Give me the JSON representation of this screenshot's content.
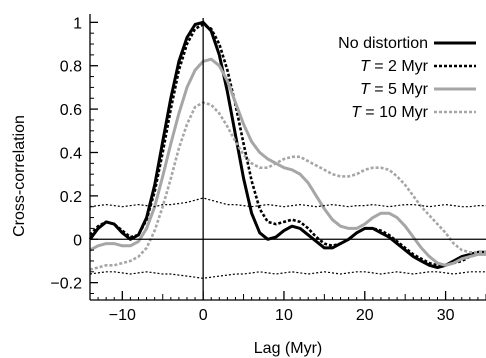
{
  "chart_data": {
    "type": "line",
    "xlabel": "Lag (Myr)",
    "ylabel": "Cross-correlation",
    "xlim": [
      -14,
      35
    ],
    "ylim": [
      -0.28,
      1.02
    ],
    "xticks": [
      -10,
      0,
      10,
      20,
      30
    ],
    "xtick_labels": [
      "−10",
      "0",
      "10",
      "20",
      "30"
    ],
    "yticks": [
      -0.2,
      0,
      0.2,
      0.4,
      0.6,
      0.8,
      1
    ],
    "ytick_labels": [
      "−0.2",
      "0",
      "0.2",
      "0.4",
      "0.6",
      "0.8",
      "1"
    ],
    "grid": false,
    "legend_position": "top-right",
    "series": [
      {
        "name": "No distortion",
        "legend_prefix": "",
        "legend_suffix": "No distortion",
        "color": "#000000",
        "style": "solid",
        "x": [
          -14,
          -13,
          -12,
          -11,
          -10,
          -9,
          -8,
          -7,
          -6,
          -5,
          -4,
          -3,
          -2,
          -1,
          0,
          1,
          2,
          3,
          4,
          5,
          6,
          7,
          8,
          9,
          10,
          11,
          12,
          13,
          14,
          15,
          16,
          17,
          18,
          19,
          20,
          21,
          22,
          23,
          24,
          25,
          26,
          27,
          28,
          29,
          30,
          31,
          32,
          33,
          34,
          35
        ],
        "y": [
          0.0,
          0.05,
          0.08,
          0.07,
          0.03,
          0.0,
          0.02,
          0.1,
          0.25,
          0.45,
          0.65,
          0.82,
          0.93,
          0.99,
          1.0,
          0.96,
          0.85,
          0.68,
          0.48,
          0.28,
          0.12,
          0.03,
          0.0,
          0.01,
          0.04,
          0.06,
          0.05,
          0.02,
          -0.01,
          -0.04,
          -0.04,
          -0.02,
          0.0,
          0.03,
          0.05,
          0.05,
          0.03,
          0.01,
          -0.02,
          -0.05,
          -0.08,
          -0.1,
          -0.12,
          -0.13,
          -0.12,
          -0.1,
          -0.08,
          -0.07,
          -0.06,
          -0.06
        ]
      },
      {
        "name": "T = 2 Myr",
        "legend_prefix": "T",
        "legend_suffix": " = 2 Myr",
        "color": "#000000",
        "style": "dotted",
        "x": [
          -14,
          -13,
          -12,
          -11,
          -10,
          -9,
          -8,
          -7,
          -6,
          -5,
          -4,
          -3,
          -2,
          -1,
          0,
          1,
          2,
          3,
          4,
          5,
          6,
          7,
          8,
          9,
          10,
          11,
          12,
          13,
          14,
          15,
          16,
          17,
          18,
          19,
          20,
          21,
          22,
          23,
          24,
          25,
          26,
          27,
          28,
          29,
          30,
          31,
          32,
          33,
          34,
          35
        ],
        "y": [
          0.02,
          0.06,
          0.08,
          0.07,
          0.04,
          0.01,
          0.02,
          0.09,
          0.22,
          0.4,
          0.6,
          0.78,
          0.9,
          0.97,
          0.99,
          0.97,
          0.9,
          0.78,
          0.62,
          0.44,
          0.27,
          0.14,
          0.08,
          0.07,
          0.08,
          0.09,
          0.08,
          0.05,
          0.01,
          -0.02,
          -0.03,
          -0.02,
          0.0,
          0.03,
          0.05,
          0.05,
          0.04,
          0.02,
          -0.01,
          -0.04,
          -0.07,
          -0.09,
          -0.11,
          -0.12,
          -0.12,
          -0.11,
          -0.1,
          -0.08,
          -0.07,
          -0.06
        ]
      },
      {
        "name": "T = 5 Myr",
        "legend_prefix": "T",
        "legend_suffix": " = 5 Myr",
        "color": "#a6a6a6",
        "style": "solid",
        "x": [
          -14,
          -13,
          -12,
          -11,
          -10,
          -9,
          -8,
          -7,
          -6,
          -5,
          -4,
          -3,
          -2,
          -1,
          0,
          1,
          2,
          3,
          4,
          5,
          6,
          7,
          8,
          9,
          10,
          11,
          12,
          13,
          14,
          15,
          16,
          17,
          18,
          19,
          20,
          21,
          22,
          23,
          24,
          25,
          26,
          27,
          28,
          29,
          30,
          31,
          32,
          33,
          34,
          35
        ],
        "y": [
          -0.05,
          -0.03,
          -0.02,
          -0.02,
          -0.03,
          -0.03,
          -0.01,
          0.05,
          0.15,
          0.29,
          0.44,
          0.58,
          0.7,
          0.78,
          0.82,
          0.83,
          0.8,
          0.73,
          0.63,
          0.53,
          0.45,
          0.4,
          0.37,
          0.35,
          0.33,
          0.32,
          0.3,
          0.26,
          0.2,
          0.14,
          0.09,
          0.06,
          0.05,
          0.05,
          0.07,
          0.1,
          0.12,
          0.12,
          0.1,
          0.06,
          0.01,
          -0.04,
          -0.08,
          -0.11,
          -0.12,
          -0.11,
          -0.09,
          -0.08,
          -0.07,
          -0.07
        ]
      },
      {
        "name": "T = 10 Myr",
        "legend_prefix": "T",
        "legend_suffix": " = 10 Myr",
        "color": "#a6a6a6",
        "style": "dotted",
        "x": [
          -14,
          -13,
          -12,
          -11,
          -10,
          -9,
          -8,
          -7,
          -6,
          -5,
          -4,
          -3,
          -2,
          -1,
          0,
          1,
          2,
          3,
          4,
          5,
          6,
          7,
          8,
          9,
          10,
          11,
          12,
          13,
          14,
          15,
          16,
          17,
          18,
          19,
          20,
          21,
          22,
          23,
          24,
          25,
          26,
          27,
          28,
          29,
          30,
          31,
          32,
          33,
          34,
          35
        ],
        "y": [
          -0.14,
          -0.13,
          -0.12,
          -0.12,
          -0.11,
          -0.1,
          -0.08,
          -0.04,
          0.04,
          0.15,
          0.28,
          0.42,
          0.53,
          0.61,
          0.63,
          0.62,
          0.58,
          0.52,
          0.45,
          0.39,
          0.35,
          0.33,
          0.33,
          0.35,
          0.37,
          0.38,
          0.38,
          0.36,
          0.34,
          0.32,
          0.3,
          0.29,
          0.29,
          0.3,
          0.32,
          0.33,
          0.33,
          0.32,
          0.29,
          0.25,
          0.2,
          0.15,
          0.11,
          0.07,
          0.03,
          -0.02,
          -0.05,
          -0.06,
          -0.06,
          -0.06
        ]
      },
      {
        "name": "",
        "legend_prefix": "",
        "legend_suffix": "",
        "color": "#000000",
        "style": "thin-dotted",
        "x": [
          -14,
          -13,
          -12,
          -11,
          -10,
          -9,
          -8,
          -7,
          -6,
          -5,
          -4,
          -3,
          -2,
          -1,
          0,
          1,
          2,
          3,
          4,
          5,
          6,
          7,
          8,
          9,
          10,
          11,
          12,
          13,
          14,
          15,
          16,
          17,
          18,
          19,
          20,
          21,
          22,
          23,
          24,
          25,
          26,
          27,
          28,
          29,
          30,
          31,
          32,
          33,
          34,
          35
        ],
        "y": [
          0.15,
          0.155,
          0.16,
          0.155,
          0.15,
          0.155,
          0.16,
          0.155,
          0.15,
          0.16,
          0.16,
          0.165,
          0.17,
          0.18,
          0.19,
          0.18,
          0.17,
          0.16,
          0.16,
          0.155,
          0.15,
          0.155,
          0.16,
          0.155,
          0.15,
          0.155,
          0.16,
          0.155,
          0.15,
          0.155,
          0.16,
          0.155,
          0.15,
          0.155,
          0.155,
          0.16,
          0.155,
          0.15,
          0.155,
          0.16,
          0.16,
          0.155,
          0.15,
          0.155,
          0.16,
          0.155,
          0.15,
          0.15,
          0.155,
          0.155
        ]
      },
      {
        "name": "",
        "legend_prefix": "",
        "legend_suffix": "",
        "color": "#000000",
        "style": "thin-dotted",
        "x": [
          -14,
          -13,
          -12,
          -11,
          -10,
          -9,
          -8,
          -7,
          -6,
          -5,
          -4,
          -3,
          -2,
          -1,
          0,
          1,
          2,
          3,
          4,
          5,
          6,
          7,
          8,
          9,
          10,
          11,
          12,
          13,
          14,
          15,
          16,
          17,
          18,
          19,
          20,
          21,
          22,
          23,
          24,
          25,
          26,
          27,
          28,
          29,
          30,
          31,
          32,
          33,
          34,
          35
        ],
        "y": [
          -0.16,
          -0.155,
          -0.15,
          -0.15,
          -0.155,
          -0.16,
          -0.155,
          -0.15,
          -0.155,
          -0.16,
          -0.16,
          -0.165,
          -0.17,
          -0.175,
          -0.18,
          -0.175,
          -0.17,
          -0.165,
          -0.16,
          -0.16,
          -0.155,
          -0.15,
          -0.155,
          -0.16,
          -0.155,
          -0.15,
          -0.155,
          -0.16,
          -0.155,
          -0.15,
          -0.155,
          -0.16,
          -0.155,
          -0.15,
          -0.15,
          -0.155,
          -0.16,
          -0.155,
          -0.15,
          -0.155,
          -0.16,
          -0.155,
          -0.15,
          -0.15,
          -0.155,
          -0.16,
          -0.155,
          -0.15,
          -0.15,
          -0.15
        ]
      }
    ]
  }
}
